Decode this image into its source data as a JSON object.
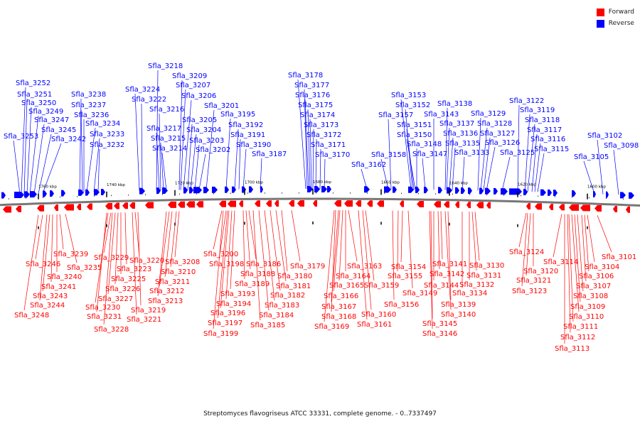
{
  "legend": {
    "forward": {
      "label": "Forward",
      "color": "#ff0000"
    },
    "reverse": {
      "label": "Reverse",
      "color": "#0000ff"
    }
  },
  "caption": "Streptomyces flavogriseus ATCC 33331, complete genome. - 0..7337497",
  "scale_ticks": [
    "1760 kbp",
    "1740 kbp",
    "1720 kbp",
    "1700 kbp",
    "1680 kbp",
    "1660 kbp",
    "1640 kbp",
    "1620 kbp",
    "1600 kbp"
  ],
  "reverse_genes": [
    "Sfla_3253",
    "Sfla_3252",
    "Sfla_3251",
    "Sfla_3250",
    "Sfla_3249",
    "Sfla_3247",
    "Sfla_3245",
    "Sfla_3242",
    "Sfla_3238",
    "Sfla_3237",
    "Sfla_3236",
    "Sfla_3234",
    "Sfla_3233",
    "Sfla_3232",
    "Sfla_3224",
    "Sfla_3222",
    "Sfla_3218",
    "Sfla_3217",
    "Sfla_3216",
    "Sfla_3215",
    "Sfla_3214",
    "Sfla_3209",
    "Sfla_3207",
    "Sfla_3206",
    "Sfla_3205",
    "Sfla_3204",
    "Sfla_3203",
    "Sfla_3202",
    "Sfla_3201",
    "Sfla_3195",
    "Sfla_3192",
    "Sfla_3191",
    "Sfla_3190",
    "Sfla_3187",
    "Sfla_3178",
    "Sfla_3177",
    "Sfla_3176",
    "Sfla_3175",
    "Sfla_3174",
    "Sfla_3173",
    "Sfla_3172",
    "Sfla_3171",
    "Sfla_3170",
    "Sfla_3162",
    "Sfla_3158",
    "Sfla_3157",
    "Sfla_3153",
    "Sfla_3152",
    "Sfla_3151",
    "Sfla_3150",
    "Sfla_3148",
    "Sfla_3147",
    "Sfla_3143",
    "Sfla_3138",
    "Sfla_3137",
    "Sfla_3136",
    "Sfla_3135",
    "Sfla_3133",
    "Sfla_3129",
    "Sfla_3128",
    "Sfla_3127",
    "Sfla_3126",
    "Sfla_3125",
    "Sfla_3122",
    "Sfla_3119",
    "Sfla_3118",
    "Sfla_3117",
    "Sfla_3116",
    "Sfla_3115",
    "Sfla_3105",
    "Sfla_3102",
    "Sfla_3098"
  ],
  "forward_genes": [
    "Sfla_3246",
    "Sfla_3248",
    "Sfla_3244",
    "Sfla_3243",
    "Sfla_3241",
    "Sfla_3240",
    "Sfla_3239",
    "Sfla_3235",
    "Sfla_3231",
    "Sfla_3230",
    "Sfla_3229",
    "Sfla_3228",
    "Sfla_3227",
    "Sfla_3226",
    "Sfla_3225",
    "Sfla_3223",
    "Sfla_3221",
    "Sfla_3220",
    "Sfla_3219",
    "Sfla_3213",
    "Sfla_3212",
    "Sfla_3211",
    "Sfla_3210",
    "Sfla_3208",
    "Sfla_3200",
    "Sfla_3199",
    "Sfla_3198",
    "Sfla_3197",
    "Sfla_3196",
    "Sfla_3194",
    "Sfla_3193",
    "Sfla_3189",
    "Sfla_3188",
    "Sfla_3186",
    "Sfla_3185",
    "Sfla_3184",
    "Sfla_3183",
    "Sfla_3182",
    "Sfla_3181",
    "Sfla_3180",
    "Sfla_3179",
    "Sfla_3169",
    "Sfla_3168",
    "Sfla_3167",
    "Sfla_3166",
    "Sfla_3165",
    "Sfla_3164",
    "Sfla_3163",
    "Sfla_3161",
    "Sfla_3160",
    "Sfla_3159",
    "Sfla_3156",
    "Sfla_3155",
    "Sfla_3154",
    "Sfla_3149",
    "Sfla_3146",
    "Sfla_3145",
    "Sfla_3144",
    "Sfla_3142",
    "Sfla_3141",
    "Sfla_3140",
    "Sfla_3139",
    "Sfla_3134",
    "Sfla_3132",
    "Sfla_3131",
    "Sfla_3130",
    "Sfla_3124",
    "Sfla_3123",
    "Sfla_3121",
    "Sfla_3120",
    "Sfla_3114",
    "Sfla_3113",
    "Sfla_3112",
    "Sfla_3111",
    "Sfla_3110",
    "Sfla_3109",
    "Sfla_3108",
    "Sfla_3107",
    "Sfla_3106",
    "Sfla_3104",
    "Sfla_3101"
  ]
}
